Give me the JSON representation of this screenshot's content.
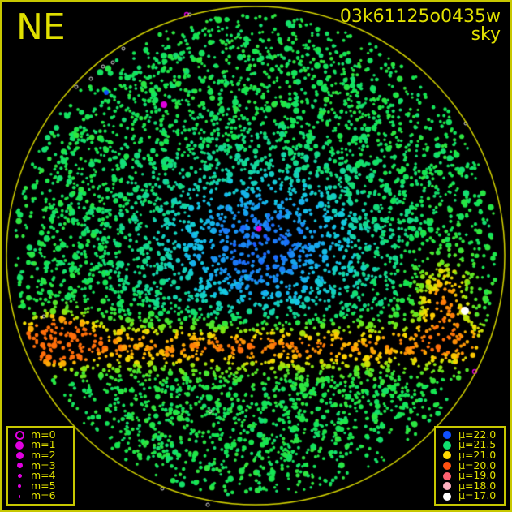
{
  "header": {
    "direction": "NE",
    "image_id": "03k61125o0435w",
    "image_type": "sky"
  },
  "colors": {
    "frame": "#c8c800",
    "text": "#e0e000",
    "horizon": "#d4d400",
    "magnitude_marker": "#e000e0"
  },
  "magnitude_legend": [
    {
      "label": "m=0",
      "icon": "open-circle"
    },
    {
      "label": "m=1"
    },
    {
      "label": "m=2"
    },
    {
      "label": "m=3"
    },
    {
      "label": "m=4"
    },
    {
      "label": "m=5"
    },
    {
      "label": "m=6"
    }
  ],
  "brightness_legend": [
    {
      "label": "μ=22.0",
      "color": "#1050ff"
    },
    {
      "label": "μ=21.5",
      "color": "#10e070"
    },
    {
      "label": "μ=21.0",
      "color": "#ffd800"
    },
    {
      "label": "μ=20.0",
      "color": "#ff5010"
    },
    {
      "label": "μ=19.0",
      "color": "#ff6070"
    },
    {
      "label": "μ=18.0",
      "color": "#ffb0c0"
    },
    {
      "label": "μ=17.0",
      "color": "#ffffff"
    }
  ]
}
